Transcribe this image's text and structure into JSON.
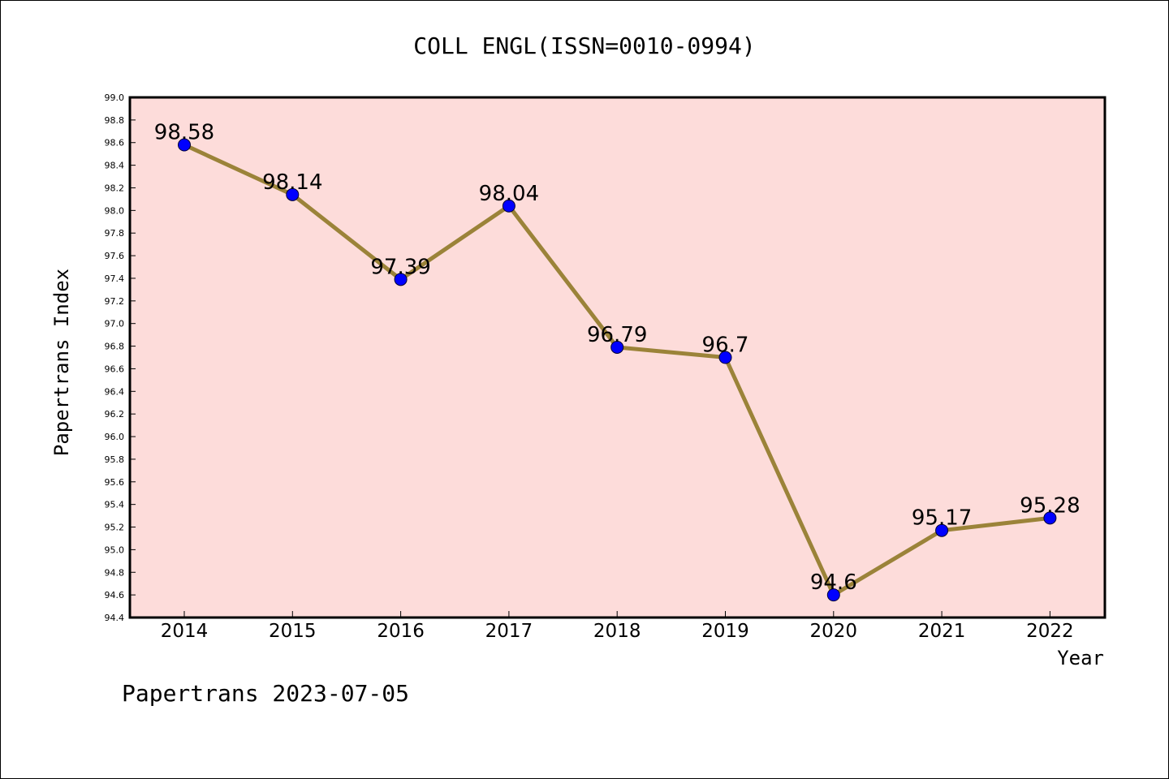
{
  "chart_data": {
    "type": "line",
    "title": "COLL ENGL(ISSN=0010-0994)",
    "xlabel": "Year",
    "ylabel": "Papertrans Index",
    "categories": [
      "2014",
      "2015",
      "2016",
      "2017",
      "2018",
      "2019",
      "2020",
      "2021",
      "2022"
    ],
    "values": [
      98.58,
      98.14,
      97.39,
      98.04,
      96.79,
      96.7,
      94.6,
      95.17,
      95.28
    ],
    "data_labels": [
      "98.58",
      "98.14",
      "97.39",
      "98.04",
      "96.79",
      "96.7",
      "94.6",
      "95.17",
      "95.28"
    ],
    "ylim": [
      94.4,
      99.0
    ],
    "ytick_step": 0.2,
    "yticks": [
      "94.4",
      "94.6",
      "94.8",
      "95.0",
      "95.2",
      "95.4",
      "95.6",
      "95.8",
      "96.0",
      "96.2",
      "96.4",
      "96.6",
      "96.8",
      "97.0",
      "97.2",
      "97.4",
      "97.6",
      "97.8",
      "98.0",
      "98.2",
      "98.4",
      "98.6",
      "98.8",
      "99.0"
    ],
    "grid": false,
    "colors": {
      "plot_background": "#fddcda",
      "line": "#9b8339",
      "marker": "#0000ff"
    }
  },
  "footer": "Papertrans 2023-07-05"
}
